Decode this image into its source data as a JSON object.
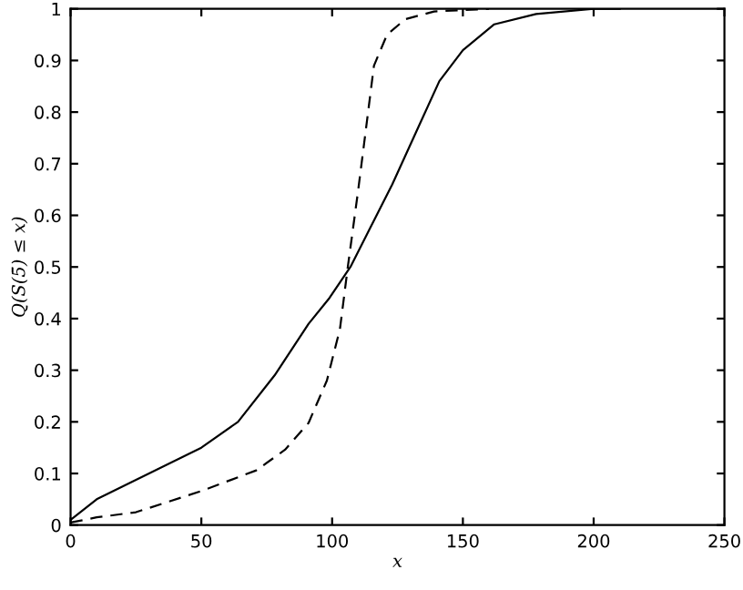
{
  "chart_data": {
    "type": "line",
    "xlabel": "x",
    "ylabel": "Q(S(5̄) ≤ x)",
    "xlim": [
      0,
      250
    ],
    "ylim": [
      0,
      1
    ],
    "xticks": [
      0,
      50,
      100,
      150,
      200,
      250
    ],
    "yticks": [
      0,
      0.1,
      0.2,
      0.3,
      0.4,
      0.5,
      0.6,
      0.7,
      0.8,
      0.9,
      1
    ],
    "grid": false,
    "legend": false,
    "series": [
      {
        "color": "#000000",
        "line_style": "solid",
        "x": [
          0,
          10,
          50,
          64,
          78,
          91,
          99,
          107,
          114,
          123,
          132,
          141,
          150,
          162,
          178,
          200,
          210
        ],
        "values": [
          0.01,
          0.05,
          0.15,
          0.2,
          0.29,
          0.39,
          0.44,
          0.5,
          0.57,
          0.66,
          0.76,
          0.86,
          0.92,
          0.97,
          0.99,
          1.0,
          1.0
        ]
      },
      {
        "color": "#000000",
        "line_style": "dashed",
        "x": [
          0,
          10,
          25,
          50,
          71,
          82,
          91,
          98,
          103,
          106,
          110,
          113,
          116,
          121,
          128,
          139,
          160
        ],
        "values": [
          0.005,
          0.015,
          0.025,
          0.066,
          0.106,
          0.146,
          0.198,
          0.28,
          0.38,
          0.5,
          0.65,
          0.77,
          0.89,
          0.95,
          0.98,
          0.995,
          1.0
        ]
      }
    ]
  }
}
